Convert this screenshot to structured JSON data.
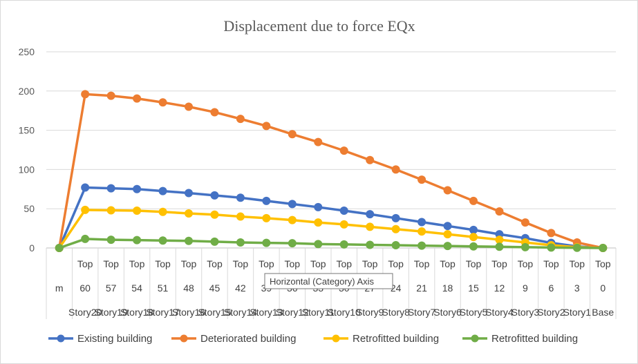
{
  "chart_data": {
    "type": "line",
    "title": "Displacement due to force EQx",
    "ylim": [
      0,
      250
    ],
    "yticks": [
      0,
      50,
      100,
      150,
      200,
      250
    ],
    "grid": true,
    "legend_position": "bottom",
    "category_levels": {
      "level1": [
        "",
        "Top",
        "Top",
        "Top",
        "Top",
        "Top",
        "Top",
        "Top",
        "Top",
        "Top",
        "Top",
        "Top",
        "Top",
        "Top",
        "Top",
        "Top",
        "Top",
        "Top",
        "Top",
        "Top",
        "Top",
        "Top"
      ],
      "level2": [
        "m",
        "60",
        "57",
        "54",
        "51",
        "48",
        "45",
        "42",
        "39",
        "36",
        "33",
        "30",
        "27",
        "24",
        "21",
        "18",
        "15",
        "12",
        "9",
        "6",
        "3",
        "0"
      ],
      "level3": [
        "",
        "Story20",
        "Story19",
        "Story18",
        "Story17",
        "Story16",
        "Story15",
        "Story14",
        "Story13",
        "Story12",
        "Story11",
        "Story10",
        "Story9",
        "Story8",
        "Story7",
        "Story6",
        "Story5",
        "Story4",
        "Story3",
        "Story2",
        "Story1",
        "Base"
      ]
    },
    "series": [
      {
        "name": "Existing building",
        "color": "#4472c4",
        "values": [
          0,
          77,
          76,
          75,
          72.5,
          70,
          67,
          64,
          60,
          56,
          52,
          47.5,
          43,
          38,
          33,
          28,
          23,
          17.5,
          12.5,
          6.5,
          2,
          0
        ]
      },
      {
        "name": "Deteriorated building",
        "color": "#ed7d31",
        "values": [
          0,
          196,
          194,
          190.5,
          185.5,
          180,
          173,
          164.5,
          155.5,
          145,
          135,
          124,
          112,
          100,
          87,
          73.5,
          60,
          46.5,
          32.5,
          19,
          7,
          0
        ]
      },
      {
        "name": "Retrofitted building",
        "color": "#ffc000",
        "values": [
          0,
          48.5,
          48,
          47.5,
          46,
          44,
          42.5,
          40,
          38,
          35.5,
          32.5,
          30,
          27,
          24,
          21,
          17.5,
          14,
          10.5,
          7,
          3.5,
          1,
          0
        ]
      },
      {
        "name": "Retrofitted building",
        "color": "#70ad47",
        "values": [
          0,
          11.5,
          10.5,
          10,
          9.5,
          9,
          8,
          7,
          6.5,
          6,
          5,
          4.5,
          4,
          3.5,
          3,
          2.5,
          2,
          1.5,
          1,
          0.5,
          0.2,
          0
        ]
      }
    ]
  },
  "tooltip": {
    "text": "Horizontal (Category) Axis"
  }
}
